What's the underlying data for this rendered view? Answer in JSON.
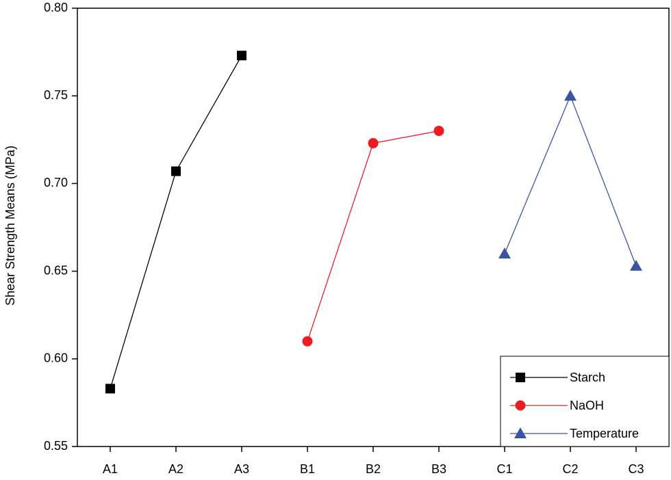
{
  "chart_data": {
    "type": "line",
    "y_label": "Shear Strength Means (MPa)",
    "categories": [
      "A1",
      "A2",
      "A3",
      "B1",
      "B2",
      "B3",
      "C1",
      "C2",
      "C3"
    ],
    "series": [
      {
        "name": "Starch",
        "color": "#000000",
        "marker": "square",
        "values": [
          0.583,
          0.707,
          0.773,
          null,
          null,
          null,
          null,
          null,
          null
        ]
      },
      {
        "name": "NaOH",
        "color": "#ed1c24",
        "marker": "circle",
        "values": [
          null,
          null,
          null,
          0.61,
          0.723,
          0.73,
          null,
          null,
          null
        ]
      },
      {
        "name": "Temperature",
        "color": "#3a53a4",
        "marker": "triangle",
        "values": [
          null,
          null,
          null,
          null,
          null,
          null,
          0.66,
          0.75,
          0.653
        ]
      }
    ],
    "ylim": [
      0.55,
      0.8
    ],
    "yticks": [
      0.55,
      {
        "value": 0.6,
        "label": "0.60"
      },
      0.65,
      {
        "value": 0.7,
        "label": "0.70"
      },
      0.75,
      {
        "value": 0.8,
        "label": "0.80"
      }
    ],
    "grid": false,
    "legend": "lower right"
  }
}
